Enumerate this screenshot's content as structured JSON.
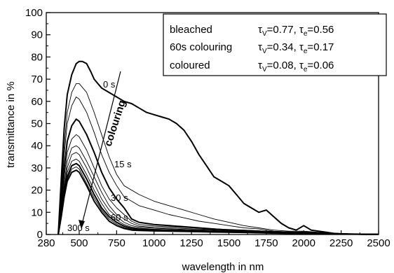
{
  "chart_data": {
    "type": "line",
    "xlabel": "wavelength in nm",
    "ylabel": "transmittance in %",
    "xlim": [
      280,
      2500
    ],
    "ylim": [
      0,
      100
    ],
    "xticks": [
      280,
      500,
      750,
      1000,
      1250,
      1500,
      1750,
      2000,
      2250,
      2500
    ],
    "yticks": [
      0,
      10,
      20,
      30,
      40,
      50,
      60,
      70,
      80,
      90,
      100
    ],
    "grid": false,
    "legend": {
      "placement": "top-right",
      "rows": [
        {
          "label": "bleached",
          "tv": "0.77",
          "te": "0.56"
        },
        {
          "label": "60s colouring",
          "tv": "0.34",
          "te": "0.17"
        },
        {
          "label": "coloured",
          "tv": "0.08",
          "te": "0.06"
        }
      ],
      "tv_prefix": "τ",
      "tv_sub": "V",
      "te_prefix": "τ",
      "te_sub": "e"
    },
    "annotations": {
      "colouring": "colouring",
      "t0": "0 s",
      "t15": "15 s",
      "t30": "30 s",
      "t60": "60 s",
      "t300": "300 s"
    },
    "series": [
      {
        "name": "0 s",
        "bold": true,
        "x": [
          360,
          380,
          400,
          420,
          450,
          480,
          500,
          520,
          550,
          580,
          600,
          650,
          700,
          750,
          800,
          850,
          900,
          950,
          1000,
          1050,
          1100,
          1150,
          1200,
          1250,
          1300,
          1350,
          1400,
          1450,
          1500,
          1550,
          1600,
          1650,
          1700,
          1750,
          1800,
          1850,
          1900,
          1950,
          2000,
          2050,
          2100,
          2150,
          2200,
          2250,
          2300,
          2350,
          2400,
          2500
        ],
        "y": [
          0,
          25,
          48,
          63,
          72,
          77,
          78,
          78,
          77,
          73,
          70,
          66,
          64,
          62,
          60,
          59,
          57,
          55,
          54,
          53,
          52,
          50,
          47,
          42,
          36,
          31,
          26,
          24,
          22,
          18,
          14,
          12,
          10,
          11,
          8,
          5,
          3,
          2,
          4,
          2,
          1.5,
          1,
          0.5,
          0.3,
          0.2,
          0.2,
          0.1,
          0.1
        ]
      },
      {
        "name": "",
        "bold": false,
        "x": [
          360,
          380,
          400,
          420,
          450,
          480,
          500,
          550,
          600,
          650,
          700,
          750,
          800,
          900,
          1000,
          1100,
          1200,
          1300,
          1400,
          1500,
          1600,
          1700,
          1800,
          1900,
          2000,
          2100,
          2200,
          2300,
          2400,
          2500
        ],
        "y": [
          0,
          20,
          40,
          55,
          64,
          68,
          68,
          64,
          55,
          45,
          35,
          27,
          22,
          18,
          15,
          13,
          11,
          9,
          7,
          5.5,
          4,
          3,
          2,
          1.5,
          1.5,
          1,
          0.6,
          0.3,
          0.2,
          0.1
        ]
      },
      {
        "name": "",
        "bold": false,
        "x": [
          360,
          380,
          400,
          420,
          450,
          480,
          500,
          550,
          600,
          650,
          700,
          750,
          800,
          900,
          1000,
          1100,
          1200,
          1300,
          1400,
          1500,
          1600,
          1700,
          1800,
          1900,
          2000,
          2100,
          2200,
          2300,
          2400,
          2500
        ],
        "y": [
          0,
          18,
          36,
          50,
          58,
          62,
          61,
          55,
          46,
          36,
          28,
          22,
          17,
          13,
          11,
          9,
          7.5,
          6,
          5,
          4,
          3,
          2.5,
          1.5,
          1.2,
          1.2,
          0.8,
          0.5,
          0.3,
          0.2,
          0.1
        ]
      },
      {
        "name": "15 s",
        "bold": true,
        "x": [
          360,
          380,
          400,
          420,
          450,
          480,
          500,
          550,
          600,
          650,
          700,
          750,
          800,
          850,
          900,
          1000,
          1100,
          1200,
          1300,
          1400,
          1500,
          1600,
          1700,
          1800,
          1900,
          2000,
          2100,
          2200,
          2300,
          2400,
          2500
        ],
        "y": [
          0,
          15,
          30,
          42,
          49,
          52,
          51,
          45,
          37,
          28,
          21,
          16,
          12,
          7,
          5.5,
          4.5,
          4,
          3.5,
          3,
          2.5,
          2,
          1.8,
          1.5,
          1,
          0.8,
          1,
          0.6,
          0.4,
          0.2,
          0.1,
          0.1
        ]
      },
      {
        "name": "",
        "bold": false,
        "x": [
          360,
          380,
          400,
          420,
          450,
          480,
          500,
          550,
          600,
          650,
          700,
          750,
          800,
          850,
          900,
          1000,
          1200,
          1400,
          1600,
          1800,
          2000,
          2200,
          2500
        ],
        "y": [
          0,
          12,
          26,
          37,
          43,
          45,
          44,
          38,
          30,
          22,
          16,
          12,
          9,
          6,
          4.5,
          3.8,
          3.2,
          2.6,
          2,
          1.4,
          1,
          0.5,
          0.1
        ]
      },
      {
        "name": "",
        "bold": false,
        "x": [
          360,
          380,
          400,
          420,
          450,
          480,
          500,
          550,
          600,
          650,
          700,
          750,
          800,
          850,
          900,
          1000,
          1200,
          1400,
          1600,
          1800,
          2000,
          2200,
          2500
        ],
        "y": [
          0,
          11,
          23,
          33,
          39,
          40,
          39,
          33,
          26,
          19,
          13,
          9,
          7,
          5,
          3.8,
          3.2,
          2.7,
          2.2,
          1.7,
          1.2,
          0.8,
          0.4,
          0.1
        ]
      },
      {
        "name": "30 s",
        "bold": false,
        "x": [
          360,
          380,
          400,
          420,
          450,
          480,
          500,
          550,
          600,
          650,
          700,
          750,
          800,
          850,
          900,
          1000,
          1200,
          1400,
          1600,
          1800,
          2000,
          2200,
          2500
        ],
        "y": [
          0,
          10,
          21,
          30,
          36,
          37,
          36,
          30,
          23,
          16,
          11,
          8,
          5.5,
          4,
          3.3,
          2.8,
          2.3,
          1.9,
          1.4,
          1,
          0.7,
          0.3,
          0.1
        ]
      },
      {
        "name": "",
        "bold": false,
        "x": [
          360,
          380,
          400,
          420,
          450,
          480,
          500,
          550,
          600,
          650,
          700,
          750,
          800,
          850,
          900,
          1000,
          1200,
          1400,
          1600,
          1800,
          2000,
          2200,
          2500
        ],
        "y": [
          0,
          9.5,
          20,
          28,
          33,
          34,
          33,
          27,
          20,
          14,
          9,
          6.5,
          4.5,
          3.3,
          2.8,
          2.4,
          2,
          1.6,
          1.2,
          0.9,
          0.6,
          0.3,
          0.1
        ]
      },
      {
        "name": "60 s",
        "bold": true,
        "x": [
          360,
          380,
          400,
          420,
          450,
          480,
          500,
          550,
          600,
          650,
          700,
          750,
          800,
          850,
          900,
          1000,
          1200,
          1400,
          1600,
          1800,
          2000,
          2200,
          2500
        ],
        "y": [
          0,
          9,
          19,
          26,
          31,
          32,
          31,
          25,
          18,
          12,
          8,
          5.5,
          3.8,
          2.8,
          2.4,
          2.1,
          1.8,
          1.4,
          1.1,
          0.8,
          0.5,
          0.2,
          0.1
        ]
      },
      {
        "name": "",
        "bold": false,
        "x": [
          360,
          380,
          400,
          420,
          450,
          480,
          500,
          550,
          600,
          650,
          700,
          750,
          800,
          850,
          900,
          1000,
          1200,
          1400,
          1600,
          1800,
          2000,
          2200,
          2500
        ],
        "y": [
          0,
          8.5,
          18,
          25,
          29.5,
          30.5,
          29.5,
          23,
          16.5,
          11,
          7,
          4.7,
          3.2,
          2.4,
          2.1,
          1.9,
          1.6,
          1.3,
          1,
          0.7,
          0.5,
          0.2,
          0.1
        ]
      },
      {
        "name": "300 s",
        "bold": true,
        "x": [
          360,
          380,
          400,
          420,
          450,
          480,
          500,
          550,
          600,
          650,
          700,
          750,
          800,
          850,
          900,
          1000,
          1200,
          1400,
          1600,
          1800,
          2000,
          2200,
          2500
        ],
        "y": [
          0,
          8,
          17,
          24,
          28,
          29,
          28,
          22,
          15,
          10,
          6,
          4,
          2.7,
          2,
          1.8,
          1.6,
          1.4,
          1.1,
          0.9,
          0.6,
          0.4,
          0.2,
          0.1
        ]
      }
    ]
  }
}
